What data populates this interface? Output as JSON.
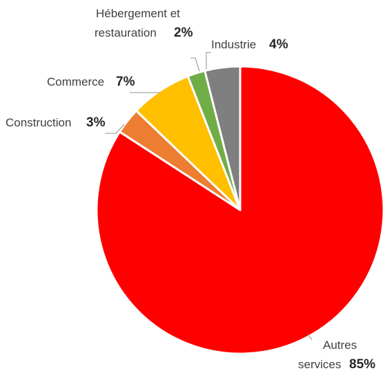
{
  "chart_data": {
    "type": "pie",
    "start": "12 o'clock",
    "direction": "clockwise",
    "slices": [
      {
        "name_lines": [
          "Autres",
          "services"
        ],
        "label": "85%",
        "value": 85,
        "color": "#ff0000"
      },
      {
        "name_lines": [
          "Construction"
        ],
        "label": "3%",
        "value": 3,
        "color": "#ed7d31"
      },
      {
        "name_lines": [
          "Commerce"
        ],
        "label": "7%",
        "value": 7,
        "color": "#ffc000"
      },
      {
        "name_lines": [
          "Hébergement et",
          "restauration"
        ],
        "label": "2%",
        "value": 2,
        "color": "#70ad47"
      },
      {
        "name_lines": [
          "Industrie"
        ],
        "label": "4%",
        "value": 4,
        "color": "#7f7f7f"
      }
    ]
  }
}
